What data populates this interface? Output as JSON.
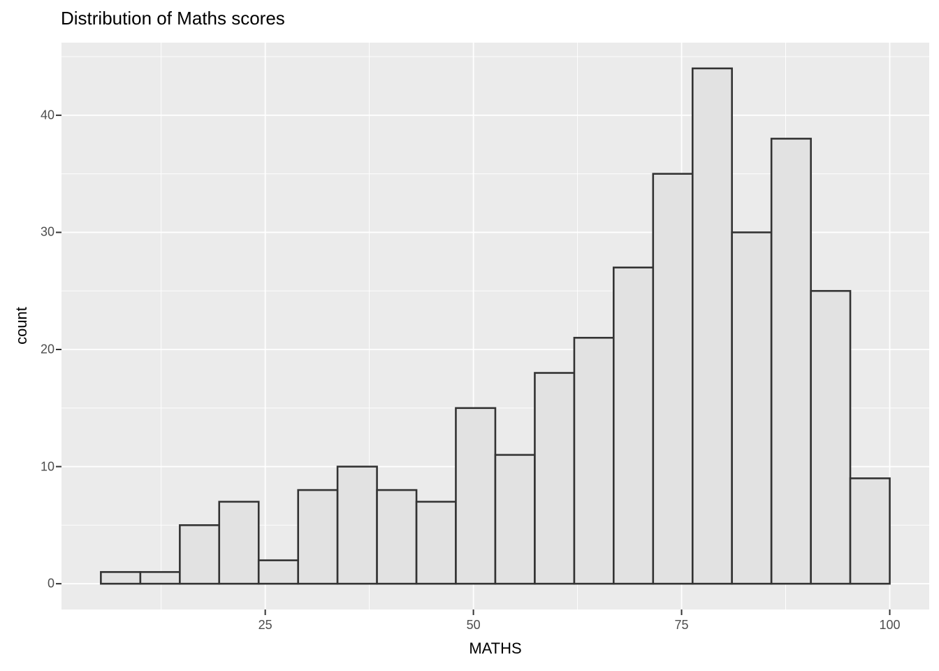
{
  "title": "Distribution of Maths scores",
  "chart_data": {
    "type": "histogram",
    "title": "Distribution of Maths scores",
    "xlabel": "MATHS",
    "ylabel": "count",
    "bin_edges": [
      5.26,
      10.0,
      14.74,
      19.47,
      24.21,
      28.95,
      33.68,
      38.42,
      43.16,
      47.89,
      52.63,
      57.37,
      62.11,
      66.84,
      71.58,
      76.32,
      81.05,
      85.79,
      90.53,
      95.26,
      100.0
    ],
    "counts": [
      1,
      1,
      5,
      7,
      2,
      8,
      10,
      8,
      7,
      15,
      11,
      18,
      21,
      27,
      35,
      44,
      30,
      38,
      25,
      9
    ],
    "x_ticks_major": [
      25,
      50,
      75,
      100
    ],
    "x_ticks_minor": [
      12.5,
      37.5,
      62.5,
      87.5
    ],
    "y_ticks_major": [
      0,
      10,
      20,
      30,
      40
    ],
    "y_ticks_minor": [
      5,
      15,
      25,
      35,
      45
    ],
    "xlim": [
      0.53,
      104.74
    ],
    "ylim": [
      -2.2,
      46.2
    ],
    "grid": "on",
    "legend": "none",
    "colors": {
      "page_background": "#FFFFFF",
      "panel_background": "#EBEBEB",
      "gridline": "#FFFFFF",
      "bar_fill": "#E2E2E2",
      "bar_stroke": "#333333",
      "tick_mark": "#333333",
      "tick_label": "#4D4D4D",
      "axis_title": "#000000",
      "title": "#000000"
    }
  }
}
